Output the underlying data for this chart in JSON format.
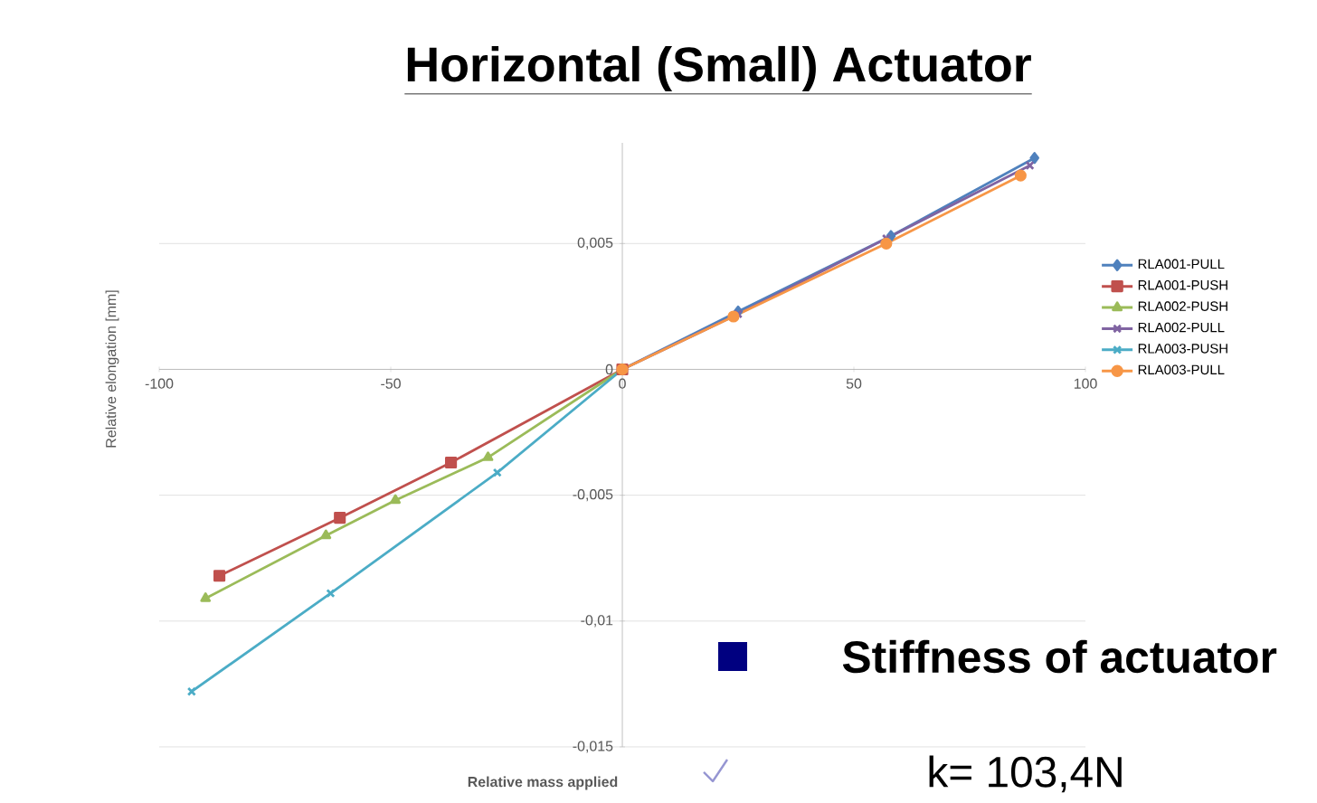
{
  "chart_data": {
    "type": "line",
    "title": "Horizontal (Small) Actuator",
    "xlabel": "Relative mass applied",
    "ylabel": "Relative elongation [mm]",
    "xlim": [
      -100,
      100
    ],
    "xticks": [
      -100,
      -50,
      0,
      50,
      100
    ],
    "ylim": [
      -0.015,
      0.009
    ],
    "yticks": [
      {
        "value": -0.015,
        "label": "-0,015"
      },
      {
        "value": -0.01,
        "label": "-0,01"
      },
      {
        "value": -0.005,
        "label": "-0,005"
      },
      0,
      {
        "value": 0.005,
        "label": "0,005"
      }
    ],
    "grid": "y",
    "legend": "right",
    "line_style": "solid",
    "series": [
      {
        "name": "RLA001-PULL",
        "color": "#4f81bd",
        "marker": "diamond",
        "x": [
          0,
          25,
          58,
          89
        ],
        "values": [
          0,
          0.0023,
          0.0053,
          0.0084
        ]
      },
      {
        "name": "RLA001-PUSH",
        "color": "#c0504d",
        "marker": "square",
        "x": [
          -87,
          -61,
          -37,
          0
        ],
        "values": [
          -0.0082,
          -0.0059,
          -0.0037,
          0
        ]
      },
      {
        "name": "RLA002-PUSH",
        "color": "#9bbb59",
        "marker": "triangle",
        "x": [
          -90,
          -64,
          -49,
          -29,
          0
        ],
        "values": [
          -0.0091,
          -0.0066,
          -0.0052,
          -0.0035,
          0
        ]
      },
      {
        "name": "RLA002-PULL",
        "color": "#8064a2",
        "marker": "cross",
        "x": [
          0,
          25,
          57,
          88
        ],
        "values": [
          0,
          0.0022,
          0.0052,
          0.0081
        ]
      },
      {
        "name": "RLA003-PUSH",
        "color": "#4bacc6",
        "marker": "cross",
        "x": [
          -93,
          -63,
          -27,
          0
        ],
        "values": [
          -0.0128,
          -0.0089,
          -0.0041,
          0
        ]
      },
      {
        "name": "RLA003-PULL",
        "color": "#f79646",
        "marker": "circle",
        "x": [
          0,
          24,
          57,
          86
        ],
        "values": [
          0,
          0.0021,
          0.005,
          0.0077
        ]
      }
    ],
    "annotations": [
      "Stiffness of actuator",
      "k= 103,4N"
    ]
  }
}
